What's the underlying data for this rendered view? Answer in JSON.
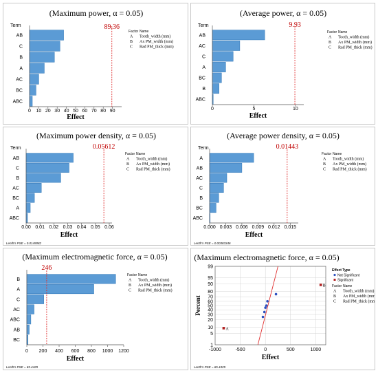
{
  "chart_data": [
    {
      "type": "bar",
      "title": "(Maximum power, α = 0.05)",
      "xlabel": "Effect",
      "ylabel": "Term",
      "categories": [
        "AB",
        "C",
        "B",
        "A",
        "AC",
        "BC",
        "ABC"
      ],
      "values": [
        37,
        33,
        27,
        16,
        10,
        7,
        3
      ],
      "reference_value": 89.36,
      "reference_label": "89.36",
      "xlim": [
        0,
        100
      ],
      "xticks": [
        "0",
        "10",
        "20",
        "30",
        "40",
        "50",
        "60",
        "70",
        "80",
        "90"
      ],
      "xtick_values": [
        0,
        10,
        20,
        30,
        40,
        50,
        60,
        70,
        80,
        90
      ],
      "footnote": "",
      "legend": {
        "header": [
          "Factor",
          "Name"
        ],
        "rows": [
          [
            "A",
            "Tooth_width (mm)"
          ],
          [
            "B",
            "Ax PM_width (mm)"
          ],
          [
            "C",
            "Rad PM_thick (mm)"
          ]
        ]
      }
    },
    {
      "type": "bar",
      "title": "(Average power, α = 0.05)",
      "xlabel": "Effect",
      "ylabel": "Term",
      "categories": [
        "AB",
        "AC",
        "C",
        "A",
        "BC",
        "B",
        "ABC"
      ],
      "values": [
        6.3,
        3.3,
        2.5,
        1.6,
        1.1,
        0.8,
        0.1
      ],
      "reference_value": 9.93,
      "reference_label": "9.93",
      "xlim": [
        0,
        11
      ],
      "xticks": [
        "0",
        "5",
        "10"
      ],
      "xtick_values": [
        0,
        5,
        10
      ],
      "footnote": "",
      "legend": {
        "header": [
          "Factor",
          "Name"
        ],
        "rows": [
          [
            "A",
            "Tooth_width (mm)"
          ],
          [
            "B",
            "Ax PM_width (mm)"
          ],
          [
            "C",
            "Rad PM_thick (mm)"
          ]
        ]
      }
    },
    {
      "type": "bar",
      "title": "(Maximum power density, α = 0.05)",
      "xlabel": "Effect",
      "ylabel": "Term",
      "categories": [
        "AB",
        "C",
        "B",
        "AC",
        "BC",
        "A",
        "ABC"
      ],
      "values": [
        0.034,
        0.031,
        0.025,
        0.011,
        0.006,
        0.003,
        0.001
      ],
      "reference_value": 0.05612,
      "reference_label": "0.05612",
      "xlim": [
        0,
        0.062
      ],
      "xticks": [
        "0.00",
        "0.01",
        "0.02",
        "0.03",
        "0.04",
        "0.05",
        "0.06"
      ],
      "xtick_values": [
        0,
        0.01,
        0.02,
        0.03,
        0.04,
        0.05,
        0.06
      ],
      "footnote": "Lenth's PSE = 0.0149082",
      "legend": {
        "header": [
          "Factor",
          "Name"
        ],
        "rows": [
          [
            "A",
            "Tooth_width (mm)"
          ],
          [
            "B",
            "Ax PM_width (mm)"
          ],
          [
            "C",
            "Rad PM_thick (mm)"
          ]
        ]
      }
    },
    {
      "type": "bar",
      "title": "(Average power density, α = 0.05)",
      "xlabel": "Effect",
      "ylabel": "Term",
      "categories": [
        "A",
        "AB",
        "AC",
        "C",
        "B",
        "BC",
        "ABC"
      ],
      "values": [
        0.0082,
        0.006,
        0.0032,
        0.0026,
        0.0017,
        0.0012,
        0.0001
      ],
      "reference_value": 0.01443,
      "reference_label": "0.01443",
      "xlim": [
        0,
        0.0165
      ],
      "xticks": [
        "0.000",
        "0.003",
        "0.006",
        "0.009",
        "0.012",
        "0.015"
      ],
      "xtick_values": [
        0,
        0.003,
        0.006,
        0.009,
        0.012,
        0.015
      ],
      "footnote": "Lenth's PSE = 0.00383346",
      "legend": {
        "header": [
          "Factor",
          "Name"
        ],
        "rows": [
          [
            "A",
            "Tooth_width (mm)"
          ],
          [
            "B",
            "Ax PM_width (mm)"
          ],
          [
            "C",
            "Rad PM_thick (mm)"
          ]
        ]
      }
    },
    {
      "type": "bar",
      "title": "(Maximum electromagnetic force, α = 0.05)",
      "xlabel": "Effect",
      "ylabel": "",
      "categories": [
        "B",
        "A",
        "C",
        "AC",
        "ABC",
        "AB",
        "BC"
      ],
      "values": [
        1100,
        830,
        210,
        90,
        50,
        30,
        15
      ],
      "reference_value": 246,
      "reference_label": "246",
      "xlim": [
        0,
        1200
      ],
      "xticks": [
        "0",
        "200",
        "400",
        "600",
        "800",
        "1000",
        "1200"
      ],
      "xtick_values": [
        0,
        200,
        400,
        600,
        800,
        1000,
        1200
      ],
      "footnote": "Lenth's PSE = 65.4429",
      "legend": {
        "header": [
          "Factor",
          "Name"
        ],
        "rows": [
          [
            "A",
            "Tooth_width (mm)"
          ],
          [
            "B",
            "Ax PM_width (mm)"
          ],
          [
            "C",
            "Rad PM_thick (mm)"
          ]
        ]
      }
    },
    {
      "type": "scatter",
      "title": "(Maximum electromagnetic force, α = 0.05)",
      "xlabel": "Effect",
      "ylabel": "Percent",
      "xlim": [
        -1000,
        1200
      ],
      "xticks": [
        "-1000",
        "-500",
        "0",
        "500",
        "1000"
      ],
      "xtick_values": [
        -1000,
        -500,
        0,
        500,
        1000
      ],
      "yticks": [
        "1",
        "5",
        "10",
        "20",
        "30",
        "40",
        "50",
        "60",
        "70",
        "80",
        "90",
        "95",
        "99"
      ],
      "ytick_values": [
        1,
        5,
        10,
        20,
        30,
        40,
        50,
        60,
        70,
        80,
        90,
        95,
        99
      ],
      "series": [
        {
          "name": "Not Significant",
          "color": "#2b4fbf",
          "points": [
            [
              -50,
              25
            ],
            [
              -20,
              35
            ],
            [
              0,
              45
            ],
            [
              20,
              50
            ],
            [
              40,
              60
            ],
            [
              210,
              75
            ]
          ],
          "labels": [
            "",
            "",
            "",
            "",
            "",
            ""
          ]
        },
        {
          "name": "Significant",
          "color": "#b22222",
          "points": [
            [
              -830,
              9
            ],
            [
              1100,
              89
            ]
          ],
          "labels": [
            "A",
            "B"
          ]
        }
      ],
      "fit_line": [
        [
          -150,
          1
        ],
        [
          250,
          99
        ]
      ],
      "legend_title": "Effect Type",
      "footnote": "Lenth's PSE = 65.4429",
      "legend": {
        "header": [
          "Factor",
          "Name"
        ],
        "rows": [
          [
            "A",
            "Tooth_width (mm)"
          ],
          [
            "B",
            "Ax PM_width (mm)"
          ],
          [
            "C",
            "Rad PM_thick (mm)"
          ]
        ]
      }
    }
  ]
}
